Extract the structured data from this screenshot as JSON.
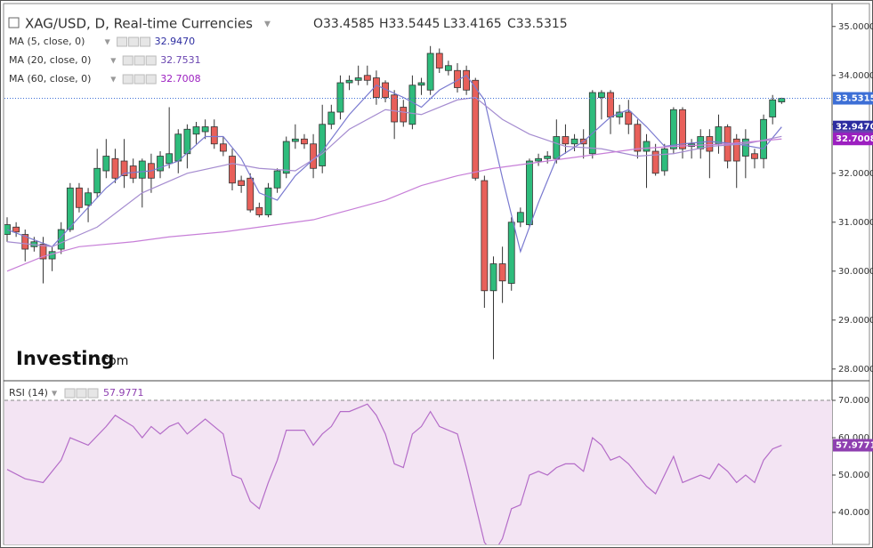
{
  "chart_data": {
    "type": "candlestick",
    "title": "XAG/USD, D, Real-time Currencies",
    "ohlc_labels": [
      "O33.4585",
      "H33.5445",
      "L33.4165",
      "C33.5315"
    ],
    "watermark": [
      "Investing",
      ".com"
    ],
    "up_color": "#2ebc7c",
    "down_color": "#e8605a",
    "ylim": [
      27.76,
      35.45
    ],
    "yticks": [
      {
        "value": 35,
        "label": "35.0000"
      },
      {
        "value": 34,
        "label": "34.0000"
      },
      {
        "value": 33,
        "label": "33.0000"
      },
      {
        "value": 32,
        "label": "32.0000"
      },
      {
        "value": 31,
        "label": "31.0000"
      },
      {
        "value": 30,
        "label": "30.0000"
      },
      {
        "value": 29,
        "label": "29.0000"
      },
      {
        "value": 28,
        "label": "28.0000"
      }
    ],
    "ohlc": [
      [
        30.75,
        31.1,
        30.6,
        30.95
      ],
      [
        30.9,
        31.0,
        30.7,
        30.8
      ],
      [
        30.75,
        30.85,
        30.2,
        30.45
      ],
      [
        30.5,
        30.7,
        30.4,
        30.6
      ],
      [
        30.55,
        30.7,
        29.75,
        30.25
      ],
      [
        30.25,
        30.5,
        30.0,
        30.4
      ],
      [
        30.45,
        31.0,
        30.35,
        30.85
      ],
      [
        30.85,
        31.8,
        30.8,
        31.7
      ],
      [
        31.7,
        31.8,
        31.2,
        31.3
      ],
      [
        31.35,
        31.7,
        31.0,
        31.6
      ],
      [
        31.6,
        32.5,
        31.5,
        32.1
      ],
      [
        32.05,
        32.7,
        31.9,
        32.35
      ],
      [
        32.3,
        32.5,
        31.8,
        31.9
      ],
      [
        32.25,
        32.7,
        31.7,
        31.95
      ],
      [
        32.15,
        32.3,
        31.8,
        31.9
      ],
      [
        31.9,
        32.3,
        31.3,
        32.25
      ],
      [
        32.2,
        32.4,
        31.6,
        31.9
      ],
      [
        32.05,
        32.45,
        31.9,
        32.35
      ],
      [
        32.2,
        33.35,
        32.1,
        32.4
      ],
      [
        32.25,
        32.9,
        32.0,
        32.8
      ],
      [
        32.4,
        33.0,
        32.1,
        32.9
      ],
      [
        32.8,
        33.05,
        32.6,
        32.95
      ],
      [
        32.85,
        33.1,
        32.7,
        32.95
      ],
      [
        32.95,
        33.1,
        32.5,
        32.6
      ],
      [
        32.6,
        32.75,
        32.35,
        32.45
      ],
      [
        32.35,
        32.5,
        31.65,
        31.8
      ],
      [
        31.85,
        31.95,
        31.6,
        31.75
      ],
      [
        31.9,
        32.0,
        31.2,
        31.25
      ],
      [
        31.3,
        31.4,
        31.1,
        31.15
      ],
      [
        31.15,
        31.8,
        31.1,
        31.7
      ],
      [
        31.7,
        32.1,
        31.6,
        32.05
      ],
      [
        32.0,
        32.75,
        31.9,
        32.65
      ],
      [
        32.65,
        33.0,
        32.5,
        32.7
      ],
      [
        32.7,
        32.8,
        32.5,
        32.6
      ],
      [
        32.6,
        32.8,
        31.9,
        32.1
      ],
      [
        32.15,
        33.4,
        32.0,
        33.0
      ],
      [
        33.0,
        33.4,
        32.9,
        33.25
      ],
      [
        33.25,
        34.0,
        33.1,
        33.85
      ],
      [
        33.85,
        34.0,
        33.7,
        33.9
      ],
      [
        33.9,
        34.2,
        33.8,
        33.95
      ],
      [
        34.0,
        34.2,
        33.8,
        33.9
      ],
      [
        33.95,
        34.1,
        33.4,
        33.55
      ],
      [
        33.85,
        33.9,
        33.45,
        33.55
      ],
      [
        33.6,
        33.7,
        32.7,
        33.05
      ],
      [
        33.35,
        33.5,
        32.95,
        33.05
      ],
      [
        33.0,
        34.0,
        32.9,
        33.8
      ],
      [
        33.8,
        33.95,
        33.6,
        33.85
      ],
      [
        33.7,
        34.6,
        33.6,
        34.45
      ],
      [
        34.45,
        34.55,
        34.05,
        34.15
      ],
      [
        34.1,
        34.3,
        34.0,
        34.2
      ],
      [
        34.1,
        34.25,
        33.65,
        33.75
      ],
      [
        34.1,
        34.2,
        33.6,
        33.7
      ],
      [
        33.9,
        33.95,
        31.85,
        31.9
      ],
      [
        31.85,
        31.95,
        29.25,
        29.6
      ],
      [
        29.6,
        30.3,
        28.2,
        30.15
      ],
      [
        30.15,
        30.5,
        29.35,
        29.8
      ],
      [
        29.75,
        31.1,
        29.6,
        31.0
      ],
      [
        31.0,
        31.3,
        30.9,
        31.2
      ],
      [
        30.95,
        32.3,
        30.9,
        32.25
      ],
      [
        32.25,
        32.4,
        32.15,
        32.3
      ],
      [
        32.3,
        32.45,
        32.2,
        32.35
      ],
      [
        32.3,
        33.1,
        32.2,
        32.75
      ],
      [
        32.75,
        33.0,
        32.4,
        32.6
      ],
      [
        32.6,
        32.8,
        32.45,
        32.7
      ],
      [
        32.7,
        32.9,
        32.3,
        32.6
      ],
      [
        32.4,
        33.7,
        32.3,
        33.65
      ],
      [
        33.55,
        33.7,
        33.1,
        33.65
      ],
      [
        33.65,
        33.7,
        32.8,
        33.15
      ],
      [
        33.15,
        33.4,
        33.0,
        33.25
      ],
      [
        33.25,
        33.5,
        32.8,
        33.0
      ],
      [
        33.0,
        33.1,
        32.3,
        32.45
      ],
      [
        32.45,
        32.8,
        31.7,
        32.65
      ],
      [
        32.45,
        32.6,
        31.95,
        32.0
      ],
      [
        32.05,
        32.6,
        31.95,
        32.5
      ],
      [
        32.5,
        33.35,
        32.4,
        33.3
      ],
      [
        33.3,
        33.35,
        32.3,
        32.5
      ],
      [
        32.55,
        32.7,
        32.3,
        32.6
      ],
      [
        32.5,
        32.9,
        32.3,
        32.75
      ],
      [
        32.75,
        32.9,
        31.9,
        32.45
      ],
      [
        32.6,
        33.2,
        32.4,
        32.95
      ],
      [
        32.95,
        33.0,
        32.1,
        32.25
      ],
      [
        32.7,
        32.8,
        31.7,
        32.25
      ],
      [
        32.35,
        32.9,
        31.9,
        32.7
      ],
      [
        32.4,
        32.5,
        32.1,
        32.3
      ],
      [
        32.3,
        33.2,
        32.1,
        33.1
      ],
      [
        33.15,
        33.6,
        33.0,
        33.5
      ],
      [
        33.4585,
        33.5445,
        33.4165,
        33.5315
      ]
    ],
    "last_price_color": "#3d6fd6",
    "series": [
      {
        "name": "MA (5, close, 0)",
        "value_label": "32.9470",
        "color": "#2c2ca0",
        "line_color": "#7a7ad0",
        "x": [
          0,
          5,
          8,
          11,
          13,
          16,
          19,
          22,
          24,
          26,
          28,
          30,
          32,
          35,
          38,
          41,
          44,
          46,
          48,
          51,
          53,
          55,
          57,
          59,
          61,
          64,
          67,
          69,
          71,
          73,
          75,
          78,
          81,
          84,
          86
        ],
        "values": [
          30.85,
          30.5,
          31.1,
          31.7,
          32.0,
          32.05,
          32.25,
          32.75,
          32.75,
          32.3,
          31.6,
          31.45,
          31.95,
          32.45,
          33.2,
          33.8,
          33.55,
          33.35,
          33.7,
          34.0,
          33.5,
          31.9,
          30.4,
          31.4,
          32.3,
          32.65,
          33.15,
          33.3,
          32.95,
          32.55,
          32.6,
          32.65,
          32.6,
          32.5,
          32.947
        ]
      },
      {
        "name": "MA (20, close, 0)",
        "value_label": "32.7531",
        "color": "#6a45b0",
        "line_color": "#a58cd0",
        "x": [
          0,
          5,
          10,
          15,
          20,
          25,
          28,
          32,
          35,
          38,
          42,
          46,
          50,
          52,
          55,
          58,
          62,
          66,
          70,
          74,
          78,
          82,
          86
        ],
        "values": [
          30.6,
          30.5,
          30.9,
          31.6,
          32.0,
          32.2,
          32.1,
          32.05,
          32.4,
          32.9,
          33.3,
          33.2,
          33.5,
          33.55,
          33.1,
          32.8,
          32.55,
          32.5,
          32.35,
          32.4,
          32.55,
          32.6,
          32.7531
        ]
      },
      {
        "name": "MA (60, close, 0)",
        "value_label": "32.7008",
        "color": "#9c1fc0",
        "line_color": "#c77fd8",
        "x": [
          0,
          4,
          8,
          14,
          18,
          24,
          28,
          34,
          38,
          42,
          46,
          50,
          54,
          58,
          62,
          66,
          70,
          74,
          80,
          86
        ],
        "values": [
          30.0,
          30.3,
          30.5,
          30.6,
          30.7,
          30.8,
          30.9,
          31.05,
          31.25,
          31.45,
          31.75,
          31.95,
          32.1,
          32.2,
          32.3,
          32.4,
          32.5,
          32.55,
          32.6,
          32.7008
        ]
      }
    ],
    "rsi": {
      "name": "RSI (14)",
      "value_label": "57.9771",
      "color": "#8e3fb0",
      "line_color": "#b46cc8",
      "band": [
        30,
        70
      ],
      "band_color": "#f3e4f3",
      "ylim": [
        31.43,
        74.29
      ],
      "yticks": [
        {
          "value": 70,
          "label": "70.000"
        },
        {
          "value": 60,
          "label": "60.000"
        },
        {
          "value": 50,
          "label": "50.000"
        },
        {
          "value": 40,
          "label": "40.000"
        }
      ],
      "x": [
        0,
        2,
        4,
        6,
        7,
        9,
        11,
        12,
        14,
        15,
        16,
        17,
        18,
        19,
        20,
        22,
        23,
        24,
        25,
        26,
        27,
        28,
        29,
        30,
        31,
        33,
        34,
        35,
        36,
        37,
        38,
        39,
        40,
        41,
        42,
        43,
        44,
        45,
        46,
        47,
        48,
        50,
        51,
        52,
        53,
        54,
        55,
        56,
        57,
        58,
        59,
        60,
        61,
        62,
        63,
        64,
        65,
        66,
        67,
        68,
        69,
        70,
        71,
        72,
        73,
        74,
        75,
        76,
        77,
        78,
        79,
        80,
        81,
        82,
        83,
        84,
        85,
        86
      ],
      "values": [
        51.5,
        49,
        48,
        54,
        60,
        58,
        63,
        66,
        63,
        60,
        63,
        61,
        63,
        64,
        61,
        65,
        63,
        61,
        50,
        49,
        43,
        41,
        48,
        54,
        62,
        62,
        58,
        61,
        63,
        67,
        67,
        68,
        69,
        66,
        61,
        53,
        52,
        61,
        63,
        67,
        63,
        61,
        52,
        42,
        32,
        29,
        33,
        41,
        42,
        50,
        51,
        50,
        52,
        53,
        53,
        51,
        60,
        58,
        54,
        55,
        53,
        50,
        47,
        45,
        50,
        55,
        48,
        49,
        50,
        49,
        53,
        51,
        48,
        50,
        48,
        54,
        57,
        57.9771
      ]
    }
  }
}
